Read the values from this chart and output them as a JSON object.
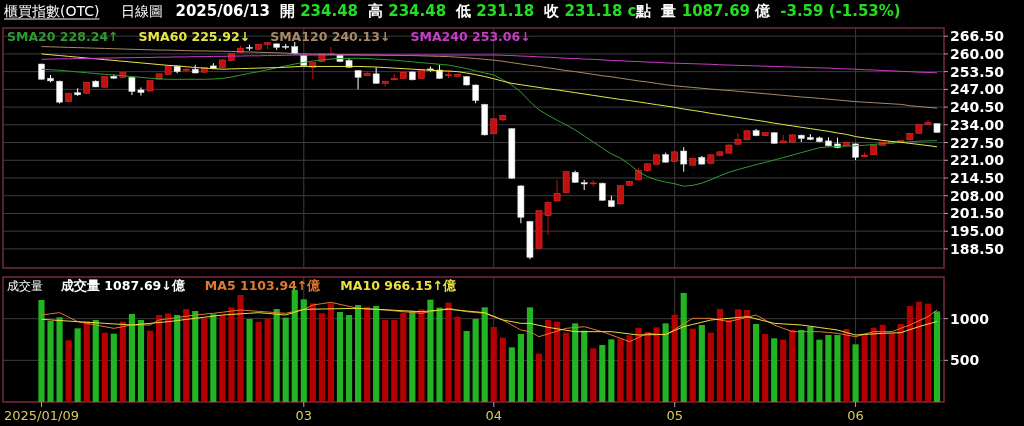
{
  "chart_data": [
    {
      "type": "candlestick",
      "title": "櫃買指數(OTC)",
      "subtitle": "日線圖",
      "annotations": [
        "2025/06/13",
        "開 234.48",
        "高 234.48",
        "低 231.18",
        "收 231.18 c點",
        "量 1087.69 億",
        "-3.59 (-1.53%)"
      ],
      "categories": [
        "2025/01/09",
        null,
        null,
        null,
        null,
        null,
        null,
        null,
        null,
        null,
        null,
        null,
        null,
        null,
        null,
        null,
        null,
        null,
        null,
        null,
        null,
        null,
        null,
        null,
        null,
        null,
        null,
        null,
        null,
        "03",
        null,
        null,
        null,
        null,
        null,
        null,
        null,
        null,
        null,
        null,
        null,
        null,
        null,
        null,
        null,
        null,
        null,
        null,
        null,
        null,
        "04",
        null,
        null,
        null,
        null,
        null,
        null,
        null,
        null,
        null,
        null,
        null,
        null,
        null,
        null,
        null,
        null,
        null,
        null,
        null,
        "05",
        null,
        null,
        null,
        null,
        null,
        null,
        null,
        null,
        null,
        null,
        null,
        null,
        null,
        null,
        null,
        null,
        null,
        null,
        null,
        "06",
        null,
        null,
        null,
        null,
        null,
        null,
        null,
        null,
        null
      ],
      "ohlc": [
        [
          256.3,
          256.4,
          250.6,
          250.7
        ],
        [
          251.1,
          252.3,
          249.6,
          250.1
        ],
        [
          250.0,
          250.2,
          241.8,
          242.3
        ],
        [
          242.5,
          245.7,
          242.3,
          245.6
        ],
        [
          245.8,
          247.4,
          244.6,
          245.0
        ],
        [
          245.6,
          249.7,
          245.4,
          249.6
        ],
        [
          250.0,
          250.3,
          247.8,
          247.9
        ],
        [
          247.8,
          251.8,
          247.6,
          251.7
        ],
        [
          251.8,
          252.3,
          250.8,
          251.1
        ],
        [
          251.4,
          253.3,
          251.2,
          253.2
        ],
        [
          251.4,
          251.6,
          244.9,
          246.2
        ],
        [
          246.8,
          247.7,
          244.7,
          245.8
        ],
        [
          246.4,
          250.3,
          246.2,
          250.2
        ],
        [
          250.7,
          252.8,
          250.5,
          252.7
        ],
        [
          252.5,
          255.5,
          252.3,
          255.4
        ],
        [
          255.5,
          255.7,
          252.9,
          253.5
        ],
        [
          254.0,
          255.0,
          253.6,
          254.4
        ],
        [
          254.4,
          256.0,
          252.9,
          253.0
        ],
        [
          253.3,
          255.1,
          253.1,
          255.0
        ],
        [
          255.6,
          256.6,
          254.4,
          254.6
        ],
        [
          255.0,
          257.9,
          254.8,
          257.8
        ],
        [
          257.6,
          260.3,
          257.4,
          260.2
        ],
        [
          260.6,
          263.1,
          260.4,
          262.1
        ],
        [
          262.4,
          263.4,
          261.2,
          262.1
        ],
        [
          261.7,
          263.6,
          261.5,
          263.5
        ],
        [
          263.5,
          264.2,
          261.7,
          264.1
        ],
        [
          263.7,
          263.8,
          261.5,
          262.4
        ],
        [
          262.8,
          263.7,
          261.7,
          262.4
        ],
        [
          262.7,
          264.4,
          259.8,
          260.0
        ],
        [
          259.4,
          259.6,
          255.6,
          255.8
        ],
        [
          255.1,
          256.9,
          250.8,
          256.8
        ],
        [
          257.2,
          260.1,
          257.0,
          260.0
        ],
        [
          259.9,
          262.7,
          259.6,
          260.2
        ],
        [
          259.6,
          259.8,
          257.0,
          257.2
        ],
        [
          257.6,
          258.4,
          254.9,
          255.1
        ],
        [
          253.9,
          254.1,
          247.0,
          251.4
        ],
        [
          252.0,
          253.7,
          251.8,
          252.9
        ],
        [
          252.7,
          255.1,
          249.0,
          249.2
        ],
        [
          249.2,
          250.1,
          248.0,
          250.0
        ],
        [
          250.5,
          252.7,
          250.3,
          251.0
        ],
        [
          251.0,
          253.4,
          250.8,
          253.3
        ],
        [
          253.4,
          253.6,
          250.3,
          250.5
        ],
        [
          251.0,
          254.4,
          250.8,
          254.3
        ],
        [
          254.5,
          255.4,
          253.5,
          254.1
        ],
        [
          254.1,
          256.0,
          250.8,
          251.0
        ],
        [
          252.2,
          254.1,
          251.1,
          252.4
        ],
        [
          251.8,
          252.7,
          251.6,
          252.5
        ],
        [
          251.7,
          251.9,
          248.4,
          248.6
        ],
        [
          248.6,
          248.8,
          241.9,
          242.9
        ],
        [
          241.5,
          241.7,
          230.1,
          230.3
        ],
        [
          230.7,
          236.4,
          230.5,
          236.2
        ],
        [
          235.8,
          237.7,
          235.2,
          237.5
        ],
        [
          232.6,
          232.8,
          214.2,
          214.4
        ],
        [
          211.6,
          211.8,
          197.9,
          200.1
        ],
        [
          198.6,
          198.8,
          184.7,
          185.4
        ],
        [
          188.7,
          202.7,
          188.5,
          202.5
        ],
        [
          200.7,
          206.0,
          193.6,
          205.5
        ],
        [
          206.1,
          213.8,
          205.9,
          208.9
        ],
        [
          209.1,
          217.0,
          208.9,
          216.8
        ],
        [
          216.6,
          217.2,
          212.7,
          212.9
        ],
        [
          212.8,
          213.8,
          210.1,
          212.3
        ],
        [
          212.4,
          213.8,
          211.3,
          212.7
        ],
        [
          212.6,
          212.8,
          206.1,
          206.3
        ],
        [
          206.2,
          208.0,
          203.8,
          204.0
        ],
        [
          205.0,
          211.9,
          204.8,
          211.7
        ],
        [
          211.8,
          213.5,
          211.6,
          213.3
        ],
        [
          213.8,
          218.3,
          213.6,
          217.2
        ],
        [
          217.2,
          219.9,
          217.0,
          219.7
        ],
        [
          219.5,
          223.2,
          219.3,
          223.0
        ],
        [
          223.1,
          223.8,
          220.1,
          220.3
        ],
        [
          220.5,
          224.3,
          220.3,
          224.1
        ],
        [
          224.4,
          225.8,
          216.8,
          219.6
        ],
        [
          219.2,
          221.9,
          219.0,
          221.7
        ],
        [
          222.1,
          222.6,
          219.4,
          219.6
        ],
        [
          219.9,
          223.2,
          219.7,
          223.0
        ],
        [
          222.8,
          224.3,
          222.4,
          224.1
        ],
        [
          223.6,
          226.8,
          223.4,
          226.6
        ],
        [
          226.9,
          230.9,
          226.7,
          228.7
        ],
        [
          228.5,
          232.0,
          228.3,
          231.8
        ],
        [
          231.9,
          232.5,
          229.8,
          230.0
        ],
        [
          230.0,
          231.3,
          229.8,
          231.1
        ],
        [
          231.1,
          231.3,
          227.0,
          227.2
        ],
        [
          227.4,
          230.3,
          227.2,
          228.1
        ],
        [
          227.7,
          230.5,
          227.5,
          230.3
        ],
        [
          230.2,
          230.4,
          227.7,
          229.0
        ],
        [
          229.4,
          230.6,
          228.4,
          228.6
        ],
        [
          229.2,
          229.7,
          227.6,
          227.8
        ],
        [
          228.1,
          229.4,
          226.1,
          226.3
        ],
        [
          227.0,
          229.3,
          225.4,
          225.6
        ],
        [
          226.3,
          227.7,
          226.1,
          227.5
        ],
        [
          227.0,
          227.2,
          221.1,
          222.1
        ],
        [
          222.3,
          223.9,
          222.1,
          222.9
        ],
        [
          223.0,
          226.7,
          222.8,
          226.5
        ],
        [
          226.5,
          227.9,
          226.3,
          227.7
        ],
        [
          227.2,
          228.0,
          227.0,
          227.8
        ],
        [
          227.7,
          228.4,
          227.5,
          228.2
        ],
        [
          228.5,
          231.1,
          228.3,
          230.9
        ],
        [
          230.9,
          234.3,
          230.7,
          234.1
        ],
        [
          234.2,
          235.8,
          234.0,
          234.77
        ],
        [
          234.48,
          234.48,
          231.18,
          231.18
        ]
      ],
      "series": [
        {
          "name": "SMA20 228.24↑",
          "type": "line",
          "color": "#2f9a2f",
          "values": [
            254.4,
            254.2,
            254.0,
            253.7,
            253.4,
            253.1,
            252.8,
            252.5,
            252.3,
            252.0,
            251.7,
            251.4,
            251.1,
            250.9,
            250.7,
            250.7,
            250.7,
            250.7,
            250.7,
            250.8,
            251.0,
            251.5,
            252.2,
            252.9,
            253.5,
            254.2,
            254.9,
            255.6,
            256.3,
            256.9,
            257.4,
            257.8,
            258.1,
            258.3,
            258.4,
            258.4,
            258.3,
            258.1,
            257.9,
            257.7,
            257.4,
            257.1,
            256.8,
            256.5,
            256.2,
            255.9,
            255.3,
            254.6,
            253.8,
            253.0,
            252.3,
            250.5,
            248.6,
            246.0,
            242.5,
            239.5,
            237.5,
            235.7,
            234.0,
            232.1,
            229.9,
            227.7,
            225.5,
            223.3,
            221.8,
            219.5,
            216.8,
            215.0,
            213.8,
            213.0,
            212.4,
            211.5,
            211.8,
            212.6,
            213.9,
            215.3,
            216.6,
            217.6,
            218.5,
            219.4,
            220.2,
            221.1,
            222.0,
            222.9,
            223.8,
            224.7,
            225.6,
            225.9,
            226.1,
            226.2,
            226.3,
            226.5,
            226.8,
            227.1,
            227.4,
            227.6,
            227.8,
            228.0,
            228.1,
            228.24
          ]
        },
        {
          "name": "SMA60 225.92↓",
          "type": "line",
          "color": "#e6e64a",
          "values": [
            260.0,
            259.7,
            259.4,
            259.1,
            258.8,
            258.5,
            258.2,
            257.9,
            257.6,
            257.3,
            257.0,
            256.7,
            256.4,
            256.1,
            255.8,
            255.6,
            255.3,
            255.0,
            254.8,
            254.6,
            254.4,
            254.5,
            254.6,
            254.7,
            254.8,
            254.9,
            255.0,
            255.1,
            255.3,
            255.4,
            255.4,
            255.4,
            255.4,
            255.4,
            255.4,
            255.4,
            255.3,
            255.2,
            255.0,
            254.8,
            254.6,
            254.4,
            254.2,
            254.0,
            253.8,
            253.7,
            253.5,
            253.0,
            252.4,
            251.7,
            250.9,
            250.0,
            249.2,
            248.7,
            248.2,
            247.7,
            247.2,
            246.8,
            246.3,
            245.8,
            245.3,
            244.8,
            244.3,
            243.8,
            243.3,
            242.9,
            242.4,
            241.9,
            241.4,
            240.9,
            240.4,
            239.8,
            239.3,
            238.8,
            238.2,
            237.7,
            237.2,
            236.7,
            236.2,
            235.7,
            235.2,
            234.6,
            234.1,
            233.6,
            233.1,
            232.6,
            232.1,
            231.6,
            231.0,
            230.5,
            229.7,
            229.2,
            228.7,
            228.3,
            227.9,
            227.6,
            227.2,
            226.8,
            226.4,
            225.92
          ]
        },
        {
          "name": "SMA120 240.13↓",
          "type": "line",
          "color": "#a88a68",
          "values": [
            262.7,
            262.6,
            262.5,
            262.4,
            262.3,
            262.2,
            262.1,
            262.0,
            261.9,
            261.8,
            261.7,
            261.6,
            261.5,
            261.4,
            261.4,
            261.3,
            261.2,
            261.1,
            261.1,
            261.0,
            261.0,
            260.9,
            260.8,
            260.7,
            260.6,
            260.5,
            260.4,
            260.3,
            260.1,
            260.0,
            259.9,
            259.9,
            259.8,
            259.8,
            259.7,
            259.7,
            259.6,
            259.6,
            259.5,
            259.5,
            259.4,
            259.4,
            259.3,
            259.2,
            259.1,
            259.0,
            258.8,
            258.6,
            258.3,
            258.0,
            257.7,
            257.3,
            256.8,
            256.3,
            255.8,
            255.4,
            254.9,
            254.4,
            253.9,
            253.5,
            253.0,
            252.5,
            252.0,
            251.6,
            251.1,
            250.6,
            250.1,
            249.7,
            249.2,
            248.7,
            248.3,
            248.0,
            247.7,
            247.4,
            247.1,
            246.8,
            246.6,
            246.3,
            246.0,
            245.7,
            245.4,
            245.1,
            244.8,
            244.5,
            244.2,
            244.0,
            243.7,
            243.4,
            243.1,
            242.8,
            242.5,
            242.3,
            242.1,
            241.9,
            241.7,
            241.5,
            241.0,
            240.7,
            240.4,
            240.13
          ]
        },
        {
          "name": "SMA240 253.06↓",
          "type": "line",
          "color": "#c83cc8",
          "values": [
            258.0,
            258.1,
            258.2,
            258.2,
            258.3,
            258.3,
            258.4,
            258.5,
            258.5,
            258.6,
            258.6,
            258.7,
            258.7,
            258.8,
            258.8,
            258.9,
            258.9,
            259.0,
            259.0,
            259.1,
            259.1,
            259.2,
            259.2,
            259.3,
            259.3,
            259.4,
            259.4,
            259.5,
            259.6,
            259.6,
            259.6,
            259.6,
            259.6,
            259.6,
            259.6,
            259.6,
            259.6,
            259.6,
            259.6,
            259.6,
            259.6,
            259.6,
            259.6,
            259.6,
            259.6,
            259.6,
            259.6,
            259.6,
            259.6,
            259.6,
            259.6,
            259.5,
            259.4,
            259.2,
            259.1,
            258.9,
            258.8,
            258.6,
            258.4,
            258.3,
            258.1,
            258.0,
            257.8,
            257.6,
            257.5,
            257.3,
            257.2,
            257.0,
            256.9,
            256.7,
            256.6,
            256.5,
            256.4,
            256.3,
            256.2,
            256.0,
            255.9,
            255.8,
            255.7,
            255.6,
            255.5,
            255.4,
            255.3,
            255.2,
            255.1,
            255.0,
            254.9,
            254.8,
            254.6,
            254.5,
            254.4,
            254.2,
            254.1,
            253.9,
            253.8,
            253.6,
            253.5,
            253.3,
            253.2,
            253.06
          ]
        }
      ],
      "ylim": [
        181.5,
        269.5
      ],
      "yticks": [
        {
          "value": 188.5,
          "label": "188.50"
        },
        {
          "value": 195,
          "label": "195.00"
        },
        {
          "value": 201.5,
          "label": "201.50"
        },
        {
          "value": 208,
          "label": "208.00"
        },
        {
          "value": 214.5,
          "label": "214.50"
        },
        {
          "value": 221,
          "label": "221.00"
        },
        {
          "value": 227.5,
          "label": "227.50"
        },
        {
          "value": 234,
          "label": "234.00"
        },
        {
          "value": 240.5,
          "label": "240.50"
        },
        {
          "value": 247,
          "label": "247.00"
        },
        {
          "value": 253.5,
          "label": "253.50"
        },
        {
          "value": 260,
          "label": "260.00"
        },
        {
          "value": 266.5,
          "label": "266.50"
        }
      ],
      "grid": true,
      "legend": "top left",
      "tick_labels": "y"
    },
    {
      "type": "bar",
      "title": "成交量",
      "categories": [
        "2025/01/09",
        null,
        null,
        null,
        null,
        null,
        null,
        null,
        null,
        null,
        null,
        null,
        null,
        null,
        null,
        null,
        null,
        null,
        null,
        null,
        null,
        null,
        null,
        null,
        null,
        null,
        null,
        null,
        null,
        "03",
        null,
        null,
        null,
        null,
        null,
        null,
        null,
        null,
        null,
        null,
        null,
        null,
        null,
        null,
        null,
        null,
        null,
        null,
        null,
        null,
        "04",
        null,
        null,
        null,
        null,
        null,
        null,
        null,
        null,
        null,
        null,
        null,
        null,
        null,
        null,
        null,
        null,
        null,
        null,
        null,
        "05",
        null,
        null,
        null,
        null,
        null,
        null,
        null,
        null,
        null,
        null,
        null,
        null,
        null,
        null,
        null,
        null,
        null,
        null,
        null,
        "06",
        null,
        null,
        null,
        null,
        null,
        null,
        null,
        null,
        null
      ],
      "series": [
        {
          "name": "成交量 1087.69↓億",
          "type": "bar",
          "values": [
            1224,
            972,
            1016,
            740,
            884,
            972,
            984,
            832,
            820,
            964,
            1056,
            984,
            856,
            1044,
            1064,
            1044,
            1116,
            1092,
            1004,
            1052,
            1044,
            1136,
            1284,
            996,
            960,
            1004,
            1116,
            1012,
            1344,
            1232,
            1184,
            1064,
            1184,
            1080,
            1044,
            1164,
            1144,
            1152,
            984,
            984,
            1072,
            1092,
            1112,
            1228,
            1132,
            1192,
            1024,
            852,
            996,
            1136,
            900,
            772,
            656,
            816,
            1136,
            580,
            984,
            964,
            832,
            944,
            856,
            644,
            684,
            752,
            764,
            800,
            892,
            840,
            896,
            944,
            1048,
            1308,
            880,
            924,
            832,
            1116,
            984,
            1112,
            1104,
            936,
            816,
            764,
            748,
            864,
            864,
            904,
            748,
            804,
            804,
            876,
            692,
            824,
            892,
            928,
            824,
            936,
            1152,
            1204,
            1180,
            1087.69
          ],
          "colors": [
            "#22b422",
            "#22b422",
            "#22b422",
            "#b40000",
            "#22b422",
            "#b40000",
            "#22b422",
            "#b40000",
            "#22b422",
            "#b40000",
            "#22b422",
            "#22b422",
            "#b40000",
            "#b40000",
            "#b40000",
            "#22b422",
            "#b40000",
            "#22b422",
            "#b40000",
            "#22b422",
            "#b40000",
            "#b40000",
            "#b40000",
            "#22b422",
            "#b40000",
            "#b40000",
            "#22b422",
            "#22b422",
            "#22b422",
            "#22b422",
            "#b40000",
            "#b40000",
            "#b40000",
            "#22b422",
            "#22b422",
            "#22b422",
            "#b40000",
            "#22b422",
            "#b40000",
            "#b40000",
            "#b40000",
            "#22b422",
            "#b40000",
            "#22b422",
            "#22b422",
            "#b40000",
            "#b40000",
            "#22b422",
            "#22b422",
            "#22b422",
            "#b40000",
            "#b40000",
            "#22b422",
            "#22b422",
            "#22b422",
            "#b40000",
            "#b40000",
            "#b40000",
            "#b40000",
            "#22b422",
            "#22b422",
            "#b40000",
            "#22b422",
            "#22b422",
            "#b40000",
            "#b40000",
            "#b40000",
            "#b40000",
            "#b40000",
            "#22b422",
            "#b40000",
            "#22b422",
            "#b40000",
            "#22b422",
            "#b40000",
            "#b40000",
            "#b40000",
            "#b40000",
            "#b40000",
            "#22b422",
            "#b40000",
            "#22b422",
            "#b40000",
            "#b40000",
            "#22b422",
            "#22b422",
            "#22b422",
            "#22b422",
            "#22b422",
            "#b40000",
            "#22b422",
            "#b40000",
            "#b40000",
            "#b40000",
            "#b40000",
            "#b40000",
            "#b40000",
            "#b40000",
            "#b40000",
            "#22b422"
          ]
        },
        {
          "name": "MA5 1103.94↑億",
          "type": "line",
          "color": "#e07a30",
          "values": [
            1044,
            1058,
            1072,
            1018,
            964,
            944,
            924,
            904,
            884,
            904,
            924,
            924,
            924,
            984,
            999,
            1014,
            1029,
            1044,
            1054,
            1064,
            1077,
            1091,
            1104,
            1096,
            1088,
            1080,
            1072,
            1064,
            1088,
            1112,
            1164,
            1180,
            1196,
            1172,
            1148,
            1124,
            1117,
            1111,
            1104,
            1094,
            1084,
            1074,
            1064,
            1084,
            1104,
            1124,
            1104,
            1084,
            1074,
            1064,
            1024,
            984,
            924,
            864,
            844,
            784,
            817,
            851,
            884,
            894,
            904,
            874,
            844,
            804,
            764,
            724,
            774,
            824,
            814,
            804,
            871,
            937,
            1004,
            1004,
            1004,
            984,
            964,
            991,
            1017,
            1044,
            984,
            924,
            884,
            844,
            844,
            844,
            844,
            834,
            824,
            804,
            784,
            814,
            844,
            844,
            844,
            884,
            924,
            974,
            1024,
            1103.94
          ]
        },
        {
          "name": "MA10 966.15↑億",
          "type": "line",
          "color": "#e8e040",
          "values": [
            992,
            985,
            978,
            971,
            964,
            957,
            951,
            944,
            937,
            931,
            924,
            934,
            944,
            954,
            964,
            977,
            991,
            1004,
            1017,
            1031,
            1044,
            1051,
            1058,
            1065,
            1072,
            1063,
            1053,
            1044,
            1078,
            1112,
            1114,
            1116,
            1118,
            1120,
            1122,
            1124,
            1118,
            1112,
            1107,
            1101,
            1095,
            1090,
            1084,
            1093,
            1103,
            1112,
            1102,
            1092,
            1082,
            1072,
            1028,
            984,
            964,
            944,
            944,
            920,
            896,
            879,
            861,
            844,
            844,
            844,
            844,
            844,
            831,
            817,
            804,
            807,
            809,
            812,
            858,
            904,
            931,
            957,
            984,
            994,
            1004,
            1014,
            1024,
            997,
            971,
            944,
            937,
            931,
            924,
            909,
            894,
            879,
            864,
            834,
            804,
            811,
            817,
            824,
            828,
            832,
            868,
            904,
            935,
            966.15
          ]
        }
      ],
      "ylim": [
        0,
        1500
      ],
      "yticks": [
        500,
        1000
      ],
      "grid": true,
      "legend": "top left"
    }
  ]
}
